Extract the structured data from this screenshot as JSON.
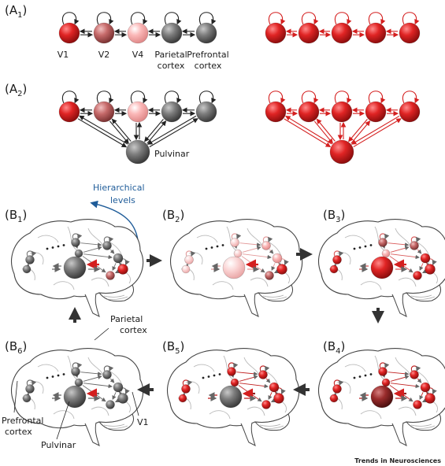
{
  "panels": {
    "A1": {
      "letter": "(A",
      "sub": "1",
      "suffix": ")"
    },
    "A2": {
      "letter": "(A",
      "sub": "2",
      "suffix": ")"
    },
    "B1": {
      "letter": "(B",
      "sub": "1",
      "suffix": ")"
    },
    "B2": {
      "letter": "(B",
      "sub": "2",
      "suffix": ")"
    },
    "B3": {
      "letter": "(B",
      "sub": "3",
      "suffix": ")"
    },
    "B4": {
      "letter": "(B",
      "sub": "4",
      "suffix": ")"
    },
    "B5": {
      "letter": "(B",
      "sub": "5",
      "suffix": ")"
    },
    "B6": {
      "letter": "(B",
      "sub": "6",
      "suffix": ")"
    }
  },
  "labels": {
    "v1": "V1",
    "v2": "V2",
    "v4": "V4",
    "parietal_1": "Parietal",
    "parietal_2": "cortex",
    "prefrontal_1": "Prefrontal",
    "prefrontal_2": "cortex",
    "pulvinar": "Pulvinar",
    "hierarchical_1": "Hierarchical",
    "hierarchical_2": "levels",
    "b6_parietal_1": "Parietal",
    "b6_parietal_2": "cortex",
    "b6_prefrontal_1": "Prefrontal",
    "b6_prefrontal_2": "cortex",
    "b6_pulvinar": "Pulvinar",
    "b6_v1": "V1"
  },
  "credit": {
    "journal": "Trends in Neurosciences"
  },
  "colors": {
    "red": "#d41f1f",
    "dark_red": "#8e1f1f",
    "mid_red": "#c06060",
    "pink": "#f3a9a9",
    "light_pink": "#f7c9c9",
    "gray": "#777777",
    "blue": "#1f5c99",
    "arrow_dark": "#333333"
  }
}
